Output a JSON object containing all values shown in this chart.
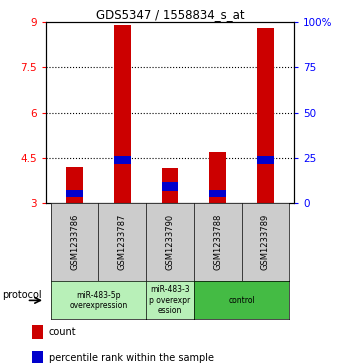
{
  "title": "GDS5347 / 1558834_s_at",
  "samples": [
    "GSM1233786",
    "GSM1233787",
    "GSM1233790",
    "GSM1233788",
    "GSM1233789"
  ],
  "red_bar_tops": [
    4.2,
    8.9,
    4.15,
    4.7,
    8.8
  ],
  "red_bar_bottom": 3.0,
  "blue_bottom": [
    3.2,
    4.3,
    3.4,
    3.2,
    4.3
  ],
  "blue_top": [
    3.45,
    4.55,
    3.7,
    3.45,
    4.55
  ],
  "ylim": [
    3.0,
    9.0
  ],
  "yticks_left": [
    3,
    4.5,
    6,
    7.5,
    9
  ],
  "yticks_right": [
    0,
    25,
    50,
    75,
    100
  ],
  "ytick_labels_left": [
    "3",
    "4.5",
    "6",
    "7.5",
    "9"
  ],
  "ytick_labels_right": [
    "0",
    "25",
    "50",
    "75",
    "100%"
  ],
  "dotted_lines": [
    4.5,
    6.0,
    7.5
  ],
  "bar_width": 0.35,
  "red_color": "#cc0000",
  "blue_color": "#0000cc",
  "legend_count_label": "count",
  "legend_pct_label": "percentile rank within the sample",
  "protocol_label": "protocol",
  "sample_box_color": "#cccccc",
  "light_green": "#b8f0b8",
  "dark_green": "#44bb44",
  "groups": [
    {
      "start": 0,
      "end": 1,
      "label": "miR-483-5p\noverexpression",
      "color": "#b8f0b8"
    },
    {
      "start": 2,
      "end": 2,
      "label": "miR-483-3\np overexpr\nession",
      "color": "#b8f0b8"
    },
    {
      "start": 3,
      "end": 4,
      "label": "control",
      "color": "#44bb44"
    }
  ]
}
